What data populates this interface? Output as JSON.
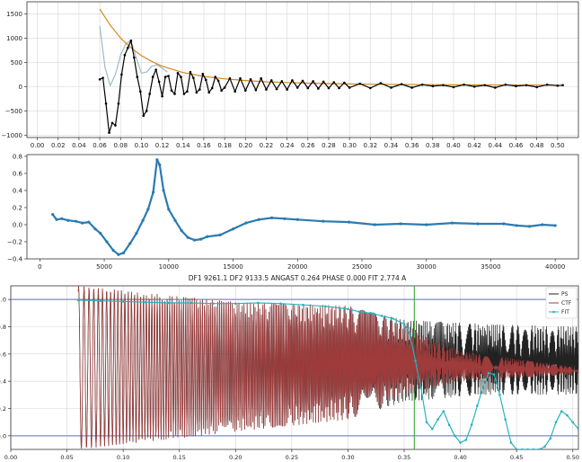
{
  "chart_data": [
    {
      "type": "line",
      "title": "",
      "xlabel": "",
      "ylabel": "",
      "xlim": [
        -0.01,
        0.52
      ],
      "ylim": [
        -1050,
        1750
      ],
      "grid": true,
      "xticks": [
        0.0,
        0.02,
        0.04,
        0.06,
        0.08,
        0.1,
        0.12,
        0.14,
        0.16,
        0.18,
        0.2,
        0.22,
        0.24,
        0.26,
        0.28,
        0.3,
        0.32,
        0.34,
        0.36,
        0.38,
        0.4,
        0.42,
        0.44,
        0.46,
        0.48,
        0.5
      ],
      "xtick_labels": [
        "0.00",
        "0.02",
        "0.04",
        "0.06",
        "0.08",
        "0.10",
        "0.12",
        "0.14",
        "0.16",
        "0.18",
        "0.20",
        "0.22",
        "0.24",
        "0.26",
        "0.28",
        "0.30",
        "0.32",
        "0.34",
        "0.36",
        "0.38",
        "0.40",
        "0.42",
        "0.44",
        "0.46",
        "0.48",
        "0.50"
      ],
      "yticks": [
        -1000,
        -500,
        0,
        500,
        1000,
        1500
      ],
      "ytick_labels": [
        "−1000",
        "−500",
        "0",
        "500",
        "1000",
        "1500"
      ],
      "series": [
        {
          "name": "",
          "color": "#9db9c9",
          "x": [
            0.06,
            0.065,
            0.07,
            0.075,
            0.08,
            0.085,
            0.09,
            0.095,
            0.1,
            0.105,
            0.11,
            0.115,
            0.12,
            0.125
          ],
          "y": [
            1250,
            400,
            20,
            250,
            650,
            880,
            950,
            600,
            280,
            300,
            420,
            450,
            380,
            300
          ]
        },
        {
          "name": "",
          "color": "#d4891c",
          "x": [
            0.06,
            0.07,
            0.08,
            0.09,
            0.1,
            0.11,
            0.12,
            0.14,
            0.16,
            0.18,
            0.2,
            0.22,
            0.24,
            0.26,
            0.28,
            0.3,
            0.32,
            0.35,
            0.38,
            0.41,
            0.44,
            0.47,
            0.5
          ],
          "y": [
            1600,
            1270,
            1000,
            800,
            640,
            520,
            420,
            290,
            210,
            160,
            125,
            100,
            85,
            72,
            63,
            56,
            50,
            44,
            40,
            37,
            34,
            32,
            30
          ]
        },
        {
          "name": "",
          "color": "#000000",
          "x": [
            0.06,
            0.063,
            0.066,
            0.069,
            0.072,
            0.075,
            0.078,
            0.081,
            0.084,
            0.087,
            0.09,
            0.093,
            0.096,
            0.099,
            0.102,
            0.105,
            0.108,
            0.111,
            0.114,
            0.117,
            0.12,
            0.123,
            0.126,
            0.129,
            0.132,
            0.135,
            0.138,
            0.141,
            0.144,
            0.147,
            0.15,
            0.153,
            0.156,
            0.159,
            0.162,
            0.165,
            0.168,
            0.171,
            0.174,
            0.177,
            0.18,
            0.185,
            0.19,
            0.195,
            0.2,
            0.205,
            0.21,
            0.215,
            0.22,
            0.225,
            0.23,
            0.235,
            0.24,
            0.245,
            0.25,
            0.255,
            0.26,
            0.265,
            0.27,
            0.275,
            0.28,
            0.285,
            0.29,
            0.295,
            0.3,
            0.31,
            0.32,
            0.33,
            0.34,
            0.35,
            0.36,
            0.37,
            0.38,
            0.39,
            0.4,
            0.41,
            0.42,
            0.43,
            0.44,
            0.45,
            0.46,
            0.47,
            0.48,
            0.49,
            0.5,
            0.505
          ],
          "y": [
            150,
            180,
            -350,
            -950,
            -750,
            -800,
            -350,
            250,
            650,
            800,
            950,
            600,
            200,
            -100,
            -600,
            -500,
            -150,
            200,
            350,
            100,
            -200,
            200,
            220,
            -80,
            -150,
            280,
            200,
            -150,
            -100,
            300,
            180,
            -120,
            -60,
            260,
            140,
            -120,
            -30,
            200,
            120,
            -80,
            -20,
            170,
            -100,
            170,
            -80,
            150,
            -70,
            170,
            -60,
            130,
            -50,
            110,
            -60,
            130,
            -20,
            120,
            -30,
            110,
            -40,
            100,
            -30,
            90,
            -30,
            80,
            -20,
            60,
            -30,
            70,
            -20,
            50,
            -20,
            40,
            10,
            30,
            -10,
            40,
            0,
            30,
            -20,
            40,
            10,
            30,
            -10,
            40,
            20,
            30
          ]
        }
      ]
    },
    {
      "type": "line",
      "title": "",
      "xlabel": "",
      "ylabel": "",
      "xlim": [
        -1000,
        41800
      ],
      "ylim": [
        -0.4,
        0.82
      ],
      "grid": false,
      "xticks": [
        0,
        5000,
        10000,
        15000,
        20000,
        25000,
        30000,
        35000,
        40000
      ],
      "xtick_labels": [
        "0",
        "5000",
        "10000",
        "15000",
        "20000",
        "25000",
        "30000",
        "35000",
        "40000"
      ],
      "yticks": [
        -0.4,
        -0.2,
        0.0,
        0.2,
        0.4,
        0.6,
        0.8
      ],
      "ytick_labels": [
        "−0.4",
        "−0.2",
        "0.0",
        "0.2",
        "0.4",
        "0.6",
        "0.8"
      ],
      "series": [
        {
          "name": "",
          "color": "#2a7bb0",
          "x": [
            1000,
            1300,
            1700,
            2200,
            2800,
            3300,
            3800,
            4300,
            4700,
            5200,
            5700,
            6100,
            6500,
            7000,
            7500,
            8000,
            8400,
            8800,
            9100,
            9300,
            9600,
            10000,
            10500,
            11000,
            11500,
            12000,
            12500,
            13000,
            14000,
            15000,
            16000,
            17000,
            18000,
            19000,
            20000,
            22000,
            24000,
            26000,
            28000,
            30000,
            32000,
            34000,
            36000,
            37000,
            38000,
            39000,
            40000
          ],
          "y": [
            0.12,
            0.06,
            0.07,
            0.05,
            0.04,
            0.02,
            0.03,
            -0.05,
            -0.1,
            -0.2,
            -0.3,
            -0.35,
            -0.33,
            -0.22,
            -0.1,
            0.05,
            0.18,
            0.38,
            0.76,
            0.7,
            0.4,
            0.18,
            0.05,
            -0.07,
            -0.15,
            -0.18,
            -0.17,
            -0.14,
            -0.12,
            -0.05,
            0.02,
            0.06,
            0.08,
            0.07,
            0.06,
            0.04,
            0.03,
            0.0,
            0.01,
            0.0,
            0.02,
            0.01,
            0.01,
            -0.01,
            -0.02,
            0.0,
            -0.01
          ]
        }
      ]
    },
    {
      "type": "line",
      "title": "DF1 9261.1 DF2 9133.5 ANGAST 0.264 PHASE 0.000 FIT 2.774 A",
      "xlabel": "",
      "ylabel": "",
      "xlim": [
        0.0,
        0.505
      ],
      "ylim": [
        -0.1,
        1.1
      ],
      "grid": true,
      "legend_position": "top-right",
      "xticks": [
        0.0,
        0.05,
        0.1,
        0.15,
        0.2,
        0.25,
        0.3,
        0.35,
        0.4,
        0.45,
        0.5
      ],
      "xtick_labels": [
        "0.00",
        "0.05",
        "0.10",
        "0.15",
        "0.20",
        "0.25",
        "0.30",
        "0.35",
        "0.40",
        "0.45",
        "0.50"
      ],
      "yticks": [
        0.0,
        0.2,
        0.4,
        0.6,
        0.8,
        1.0
      ],
      "ytick_labels": [
        "0.0",
        "0.2",
        "0.4",
        "0.6",
        "0.8",
        "1.0"
      ],
      "hlines": [
        0.0,
        1.0
      ],
      "hline_color": "#5a72b0",
      "vline_x": 0.359,
      "vline_color": "#2ca02c",
      "series": [
        {
          "name": "PS",
          "color": "#222222",
          "style": "oscillation",
          "x_start": 0.06,
          "x_end": 0.505,
          "y_upper": [
            [
              0.06,
              1.1
            ],
            [
              0.2,
              0.98
            ],
            [
              0.3,
              0.95
            ],
            [
              0.35,
              0.85
            ],
            [
              0.42,
              0.82
            ],
            [
              0.505,
              0.8
            ]
          ],
          "y_lower": [
            [
              0.06,
              -0.1
            ],
            [
              0.2,
              0.03
            ],
            [
              0.3,
              0.12
            ],
            [
              0.35,
              0.25
            ],
            [
              0.42,
              0.3
            ],
            [
              0.505,
              0.3
            ]
          ]
        },
        {
          "name": "CTF",
          "color": "#a03b3b",
          "style": "oscillation",
          "x_start": 0.06,
          "x_end": 0.505,
          "y_upper": [
            [
              0.06,
              1.1
            ],
            [
              0.2,
              0.98
            ],
            [
              0.3,
              0.96
            ],
            [
              0.35,
              0.8
            ],
            [
              0.4,
              0.62
            ],
            [
              0.505,
              0.5
            ]
          ],
          "y_lower": [
            [
              0.06,
              -0.1
            ],
            [
              0.2,
              0.03
            ],
            [
              0.3,
              0.12
            ],
            [
              0.35,
              0.3
            ],
            [
              0.4,
              0.4
            ],
            [
              0.505,
              0.45
            ]
          ]
        },
        {
          "name": "FIT",
          "color": "#27b3c0",
          "marker": true,
          "x": [
            0.06,
            0.08,
            0.1,
            0.12,
            0.14,
            0.16,
            0.18,
            0.2,
            0.22,
            0.24,
            0.26,
            0.28,
            0.3,
            0.31,
            0.32,
            0.33,
            0.34,
            0.35,
            0.355,
            0.36,
            0.365,
            0.37,
            0.375,
            0.38,
            0.385,
            0.39,
            0.395,
            0.4,
            0.405,
            0.41,
            0.415,
            0.42,
            0.425,
            0.43,
            0.435,
            0.44,
            0.445,
            0.45,
            0.455,
            0.46,
            0.465,
            0.47,
            0.475,
            0.48,
            0.485,
            0.49,
            0.495,
            0.5,
            0.505
          ],
          "y": [
            0.995,
            0.99,
            0.985,
            0.98,
            0.975,
            0.975,
            0.97,
            0.97,
            0.975,
            0.97,
            0.96,
            0.95,
            0.93,
            0.91,
            0.9,
            0.88,
            0.86,
            0.82,
            0.75,
            0.55,
            0.35,
            0.1,
            0.05,
            0.12,
            0.18,
            0.08,
            0.0,
            -0.05,
            -0.03,
            0.08,
            0.22,
            0.35,
            0.46,
            0.45,
            0.3,
            0.12,
            -0.05,
            -0.1,
            -0.1,
            -0.1,
            -0.1,
            -0.1,
            -0.08,
            -0.02,
            0.1,
            0.18,
            0.15,
            0.1,
            0.05
          ]
        }
      ]
    }
  ]
}
